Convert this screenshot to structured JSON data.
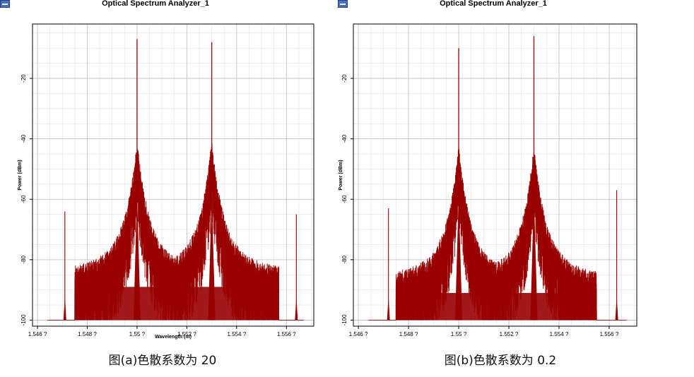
{
  "captions": {
    "a": "图(a)色散系数为 20",
    "b": "图(b)色散系数为 0.2"
  },
  "colors": {
    "trace": "#990000",
    "grid_major": "#bdbdbd",
    "grid_minor": "#e2e2e2",
    "frame": "#000000"
  },
  "chart_data": [
    {
      "type": "line",
      "title": "Optical Spectrum Analyzer_1",
      "xlabel": "Wavelength (m)",
      "ylabel": "Power (dBm)",
      "xlim": [
        1.5458,
        1.5571
      ],
      "ylim": [
        -102,
        -2
      ],
      "x_ticks": [
        1.546,
        1.548,
        1.55,
        1.552,
        1.554,
        1.556
      ],
      "x_tick_labels": [
        "1.546 ?",
        "1.548 ?",
        "1.55 ?",
        "1.552 ?",
        "1.554 ?",
        "1.556 ?"
      ],
      "y_ticks": [
        -100,
        -80,
        -60,
        -40,
        -20
      ],
      "y_tick_labels": [
        "-100",
        "-80",
        "-60",
        "-40",
        "-20"
      ],
      "grid": true,
      "noise_floor": -100,
      "series": [
        {
          "peaks": [
            {
              "x": 1.55,
              "y": -7
            },
            {
              "x": 1.553,
              "y": -8
            },
            {
              "x": 1.5471,
              "y": -64
            },
            {
              "x": 1.5564,
              "y": -65
            }
          ],
          "signal_band": [
            1.5475,
            1.5557
          ],
          "band_level": -83
        }
      ]
    },
    {
      "type": "line",
      "title": "Optical Spectrum Analyzer_1",
      "xlabel": "",
      "ylabel": "Power (dBm)",
      "xlim": [
        1.5458,
        1.5571
      ],
      "ylim": [
        -102,
        -2
      ],
      "x_ticks": [
        1.546,
        1.548,
        1.55,
        1.552,
        1.554,
        1.556
      ],
      "x_tick_labels": [
        "1.546 ?",
        "1.548 ?",
        "1.55 ?",
        "1.552 ?",
        "1.554 ?",
        "1.556 ?"
      ],
      "y_ticks": [
        -100,
        -80,
        -60,
        -40,
        -20
      ],
      "y_tick_labels": [
        "-100",
        "-80",
        "-60",
        "-40",
        "-20"
      ],
      "grid": true,
      "noise_floor": -100,
      "series": [
        {
          "peaks": [
            {
              "x": 1.55,
              "y": -10
            },
            {
              "x": 1.553,
              "y": -6
            },
            {
              "x": 1.5472,
              "y": -63
            },
            {
              "x": 1.5563,
              "y": -57
            }
          ],
          "signal_band": [
            1.5475,
            1.5555
          ],
          "band_level": -85
        }
      ]
    }
  ]
}
